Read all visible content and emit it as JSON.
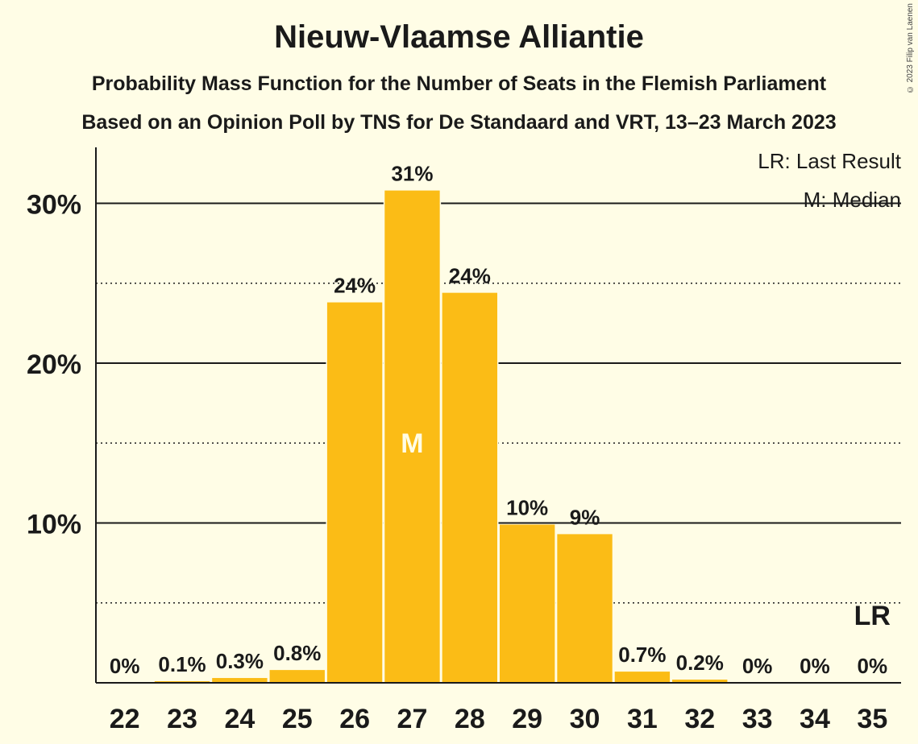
{
  "chart_data": {
    "type": "bar",
    "title": "Nieuw-Vlaamse Alliantie",
    "subtitle": "Probability Mass Function for the Number of Seats in the Flemish Parliament",
    "subtitle2": "Based on an Opinion Poll by TNS for De Standaard and VRT, 13–23 March 2023",
    "copyright": "© 2023 Filip van Laenen",
    "categories": [
      "22",
      "23",
      "24",
      "25",
      "26",
      "27",
      "28",
      "29",
      "30",
      "31",
      "32",
      "33",
      "34",
      "35"
    ],
    "values": [
      0,
      0.1,
      0.3,
      0.8,
      23.8,
      30.8,
      24.4,
      9.9,
      9.3,
      0.7,
      0.2,
      0,
      0,
      0
    ],
    "labels": [
      "0%",
      "0.1%",
      "0.3%",
      "0.8%",
      "24%",
      "31%",
      "24%",
      "10%",
      "9%",
      "0.7%",
      "0.2%",
      "0%",
      "0%",
      "0%"
    ],
    "ylim": [
      0,
      33.5
    ],
    "yticks": [
      10,
      20,
      30
    ],
    "ytick_labels": [
      "10%",
      "20%",
      "30%"
    ],
    "minor_gridlines": [
      5,
      15,
      25
    ],
    "median_seat": "27",
    "median_marker": "M",
    "last_result_seat": "35",
    "last_result_marker": "LR",
    "legend": [
      "LR: Last Result",
      "M: Median"
    ],
    "legend_position": "top-right",
    "bar_color": "#fbbc16"
  }
}
